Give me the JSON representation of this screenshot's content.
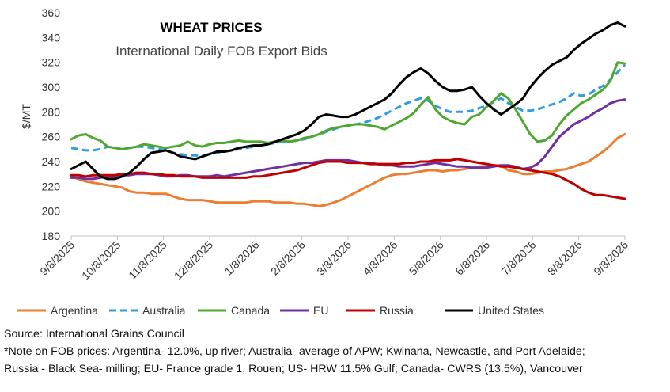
{
  "chart_data": {
    "type": "line",
    "title": "WHEAT PRICES",
    "subtitle": "International Daily FOB Export Bids",
    "ylabel": "$/MT",
    "xlabel": "",
    "ylim": [
      180,
      360
    ],
    "yticks": [
      180,
      200,
      220,
      240,
      260,
      280,
      300,
      320,
      340,
      360
    ],
    "xticks": [
      "9/8/2025",
      "10/8/2025",
      "11/8/2025",
      "12/8/2025",
      "1/8/2026",
      "2/8/2026",
      "3/8/2026",
      "4/8/2026",
      "5/8/2026",
      "6/8/2026",
      "7/8/2026",
      "8/8/2026",
      "9/8/2026"
    ],
    "grid": false,
    "legend": "bottom",
    "series": [
      {
        "name": "Argentina",
        "color": "#ED7D31",
        "dash": false,
        "values": [
          228,
          226,
          224,
          223,
          222,
          221,
          220,
          219,
          216,
          215,
          215,
          214,
          214,
          214,
          212,
          210,
          209,
          209,
          209,
          208,
          207,
          207,
          207,
          207,
          207,
          208,
          208,
          208,
          207,
          207,
          207,
          206,
          206,
          205,
          204,
          205,
          207,
          209,
          212,
          215,
          218,
          221,
          224,
          227,
          229,
          230,
          230,
          231,
          232,
          233,
          233,
          232,
          233,
          233,
          234,
          235,
          236,
          236,
          237,
          237,
          233,
          232,
          230,
          230,
          231,
          232,
          232,
          233,
          234,
          236,
          238,
          240,
          244,
          248,
          253,
          259,
          262
        ]
      },
      {
        "name": "Australia",
        "color": "#2F9BE0",
        "dash": true,
        "values": [
          251,
          250,
          249,
          249,
          250,
          252,
          251,
          250,
          251,
          252,
          252,
          251,
          250,
          249,
          247,
          246,
          245,
          245,
          245,
          246,
          247,
          248,
          249,
          250,
          251,
          252,
          253,
          254,
          255,
          256,
          256,
          257,
          258,
          260,
          262,
          264,
          266,
          268,
          269,
          270,
          271,
          273,
          275,
          278,
          281,
          284,
          287,
          289,
          291,
          289,
          285,
          282,
          280,
          280,
          280,
          281,
          283,
          285,
          288,
          291,
          287,
          284,
          281,
          281,
          282,
          284,
          286,
          288,
          291,
          295,
          293,
          294,
          298,
          301,
          306,
          312,
          318
        ]
      },
      {
        "name": "Canada",
        "color": "#4EA72E",
        "dash": false,
        "values": [
          258,
          261,
          262,
          259,
          257,
          252,
          251,
          250,
          251,
          252,
          254,
          253,
          252,
          251,
          252,
          253,
          256,
          253,
          252,
          254,
          255,
          255,
          256,
          257,
          256,
          256,
          256,
          255,
          256,
          257,
          256,
          257,
          259,
          260,
          262,
          265,
          267,
          268,
          269,
          270,
          270,
          269,
          268,
          266,
          269,
          272,
          275,
          279,
          286,
          292,
          282,
          276,
          273,
          271,
          270,
          276,
          278,
          284,
          289,
          295,
          291,
          282,
          272,
          262,
          256,
          257,
          261,
          270,
          277,
          282,
          287,
          290,
          294,
          298,
          305,
          320,
          319
        ]
      },
      {
        "name": "EU",
        "color": "#7030A0",
        "dash": false,
        "values": [
          227,
          227,
          226,
          226,
          227,
          228,
          228,
          229,
          229,
          230,
          230,
          230,
          229,
          228,
          228,
          229,
          229,
          228,
          228,
          228,
          229,
          228,
          229,
          230,
          231,
          232,
          233,
          234,
          235,
          236,
          237,
          238,
          239,
          239,
          240,
          241,
          241,
          241,
          241,
          240,
          239,
          239,
          238,
          237,
          237,
          236,
          236,
          236,
          237,
          238,
          239,
          238,
          237,
          236,
          236,
          235,
          235,
          235,
          236,
          237,
          237,
          236,
          234,
          235,
          238,
          244,
          252,
          260,
          265,
          270,
          273,
          276,
          280,
          283,
          287,
          289,
          290
        ]
      },
      {
        "name": "Russia",
        "color": "#C00000",
        "dash": false,
        "values": [
          229,
          229,
          228,
          229,
          229,
          229,
          229,
          230,
          230,
          231,
          231,
          230,
          230,
          229,
          229,
          228,
          228,
          228,
          227,
          227,
          227,
          227,
          227,
          227,
          227,
          228,
          228,
          229,
          230,
          231,
          232,
          233,
          235,
          237,
          239,
          240,
          240,
          240,
          239,
          239,
          239,
          238,
          238,
          238,
          238,
          238,
          239,
          239,
          240,
          240,
          241,
          241,
          241,
          242,
          241,
          240,
          239,
          238,
          237,
          236,
          236,
          235,
          234,
          233,
          232,
          231,
          230,
          228,
          225,
          222,
          218,
          215,
          213,
          213,
          212,
          211,
          210
        ]
      },
      {
        "name": "United States",
        "color": "#000000",
        "dash": false,
        "values": [
          234,
          237,
          240,
          234,
          228,
          226,
          226,
          228,
          231,
          236,
          242,
          247,
          248,
          249,
          247,
          244,
          243,
          242,
          244,
          246,
          248,
          248,
          249,
          251,
          252,
          253,
          253,
          254,
          256,
          258,
          260,
          262,
          265,
          270,
          276,
          278,
          277,
          276,
          276,
          278,
          281,
          284,
          287,
          290,
          295,
          302,
          308,
          312,
          315,
          311,
          305,
          300,
          297,
          297,
          298,
          300,
          293,
          287,
          282,
          278,
          282,
          286,
          291,
          300,
          307,
          313,
          318,
          321,
          324,
          330,
          335,
          339,
          343,
          346,
          350,
          352,
          349
        ]
      }
    ],
    "legend_entries": [
      "Argentina",
      "Australia",
      "Canada",
      "EU",
      "Russia",
      "United States"
    ]
  },
  "notes": {
    "source": "Source: International Grains Council",
    "line1": "*Note on FOB prices: Argentina- 12.0%, up river; Australia- average of APW; Kwinana, Newcastle, and Port Adelaide;",
    "line2": "Russia - Black Sea- milling; EU- France grade 1, Rouen; US- HRW 11.5% Gulf; Canada- CWRS (13.5%), Vancouver"
  }
}
